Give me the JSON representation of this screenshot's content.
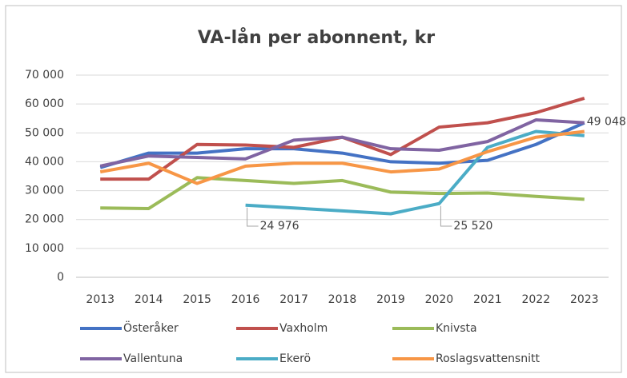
{
  "chart_data": {
    "type": "line",
    "title": "VA-lån per abonnent, kr",
    "categories": [
      "2013",
      "2014",
      "2015",
      "2016",
      "2017",
      "2018",
      "2019",
      "2020",
      "2021",
      "2022",
      "2023"
    ],
    "series": [
      {
        "name": "Österåker",
        "color": "#4472c4",
        "values": [
          38000,
          43000,
          43000,
          44500,
          44500,
          43000,
          40000,
          39500,
          40500,
          46000,
          53500
        ]
      },
      {
        "name": "Vaxholm",
        "color": "#c0504d",
        "values": [
          34000,
          34000,
          46000,
          45800,
          45000,
          48500,
          42500,
          52000,
          53500,
          57000,
          62000
        ]
      },
      {
        "name": "Knivsta",
        "color": "#9bbb59",
        "values": [
          24000,
          23800,
          34500,
          33500,
          32500,
          33500,
          29500,
          29000,
          29200,
          28000,
          27000
        ]
      },
      {
        "name": "Vallentuna",
        "color": "#8064a2",
        "values": [
          38500,
          42000,
          41500,
          41000,
          47500,
          48500,
          44500,
          44000,
          47000,
          54500,
          53500
        ]
      },
      {
        "name": "Ekerö",
        "color": "#4bacc6",
        "values": [
          null,
          null,
          null,
          24976,
          24000,
          23000,
          22000,
          25520,
          45000,
          50500,
          49048
        ],
        "value_labels": [
          null,
          null,
          null,
          "24 976",
          null,
          null,
          null,
          "25 520",
          null,
          null,
          "49 048"
        ]
      },
      {
        "name": "Roslagsvattensnitt",
        "color": "#f79646",
        "values": [
          36500,
          39500,
          32500,
          38500,
          39500,
          39500,
          36500,
          37500,
          43500,
          48500,
          50500
        ]
      }
    ],
    "ylim": [
      0,
      70000
    ],
    "yticks": [
      0,
      {
        "value": 10000,
        "label": "10 000"
      },
      {
        "value": 20000,
        "label": "20 000"
      },
      {
        "value": 30000,
        "label": "30 000"
      },
      {
        "value": 40000,
        "label": "40 000"
      },
      {
        "value": 50000,
        "label": "50 000"
      },
      {
        "value": 60000,
        "label": "60 000"
      },
      {
        "value": 70000,
        "label": "70 000"
      }
    ],
    "grid": true
  }
}
